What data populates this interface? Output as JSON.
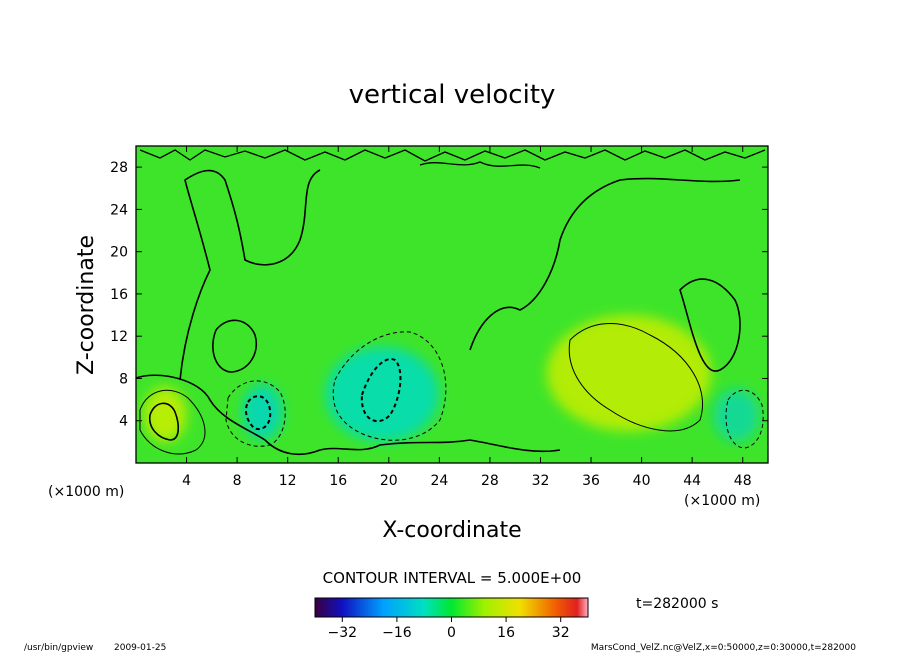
{
  "chart_data": {
    "type": "heatmap",
    "title": "vertical velocity",
    "xlabel": "X-coordinate",
    "ylabel": "Z-coordinate",
    "x_unit_left": "(×1000 m)",
    "x_unit_right": "(×1000 m)",
    "xlim": [
      0,
      50
    ],
    "ylim": [
      0,
      30
    ],
    "x_ticks": [
      4,
      8,
      12,
      16,
      20,
      24,
      28,
      32,
      36,
      40,
      44,
      48
    ],
    "y_ticks": [
      4,
      8,
      12,
      16,
      20,
      24,
      28
    ],
    "contour_interval_text": "CONTOUR INTERVAL = 5.000E+00",
    "time_text": "t=282000 s",
    "colorbar": {
      "range": [
        -40,
        40
      ],
      "ticks": [
        -32,
        -16,
        0,
        16,
        32
      ],
      "tick_labels": [
        "−32",
        "−16",
        "0",
        "16",
        "32"
      ]
    },
    "features": [
      {
        "kind": "updraft",
        "x": 2.3,
        "z": 4.6,
        "rx": 1.7,
        "rz": 2.6,
        "value": 8,
        "color": "#ccf000"
      },
      {
        "kind": "updraft",
        "x": 39,
        "z": 8.5,
        "rx": 6.5,
        "rz": 5.5,
        "value": 8,
        "color": "#c8ee00"
      },
      {
        "kind": "downdraft",
        "x": 19.5,
        "z": 6.5,
        "rx": 4.5,
        "rz": 4.5,
        "value": -8,
        "color": "#00dcc0"
      },
      {
        "kind": "downdraft",
        "x": 10,
        "z": 4.8,
        "rx": 1.6,
        "rz": 2.6,
        "value": -8,
        "color": "#00d6c6"
      },
      {
        "kind": "downdraft",
        "x": 47.5,
        "z": 4.5,
        "rx": 1.8,
        "rz": 2.5,
        "value": -6,
        "color": "#10d8a8"
      }
    ]
  },
  "footer": {
    "program": "/usr/bin/gpview",
    "date": "2009-01-25",
    "source": "MarsCond_VelZ.nc@VelZ,x=0:50000,z=0:30000,t=282000"
  }
}
